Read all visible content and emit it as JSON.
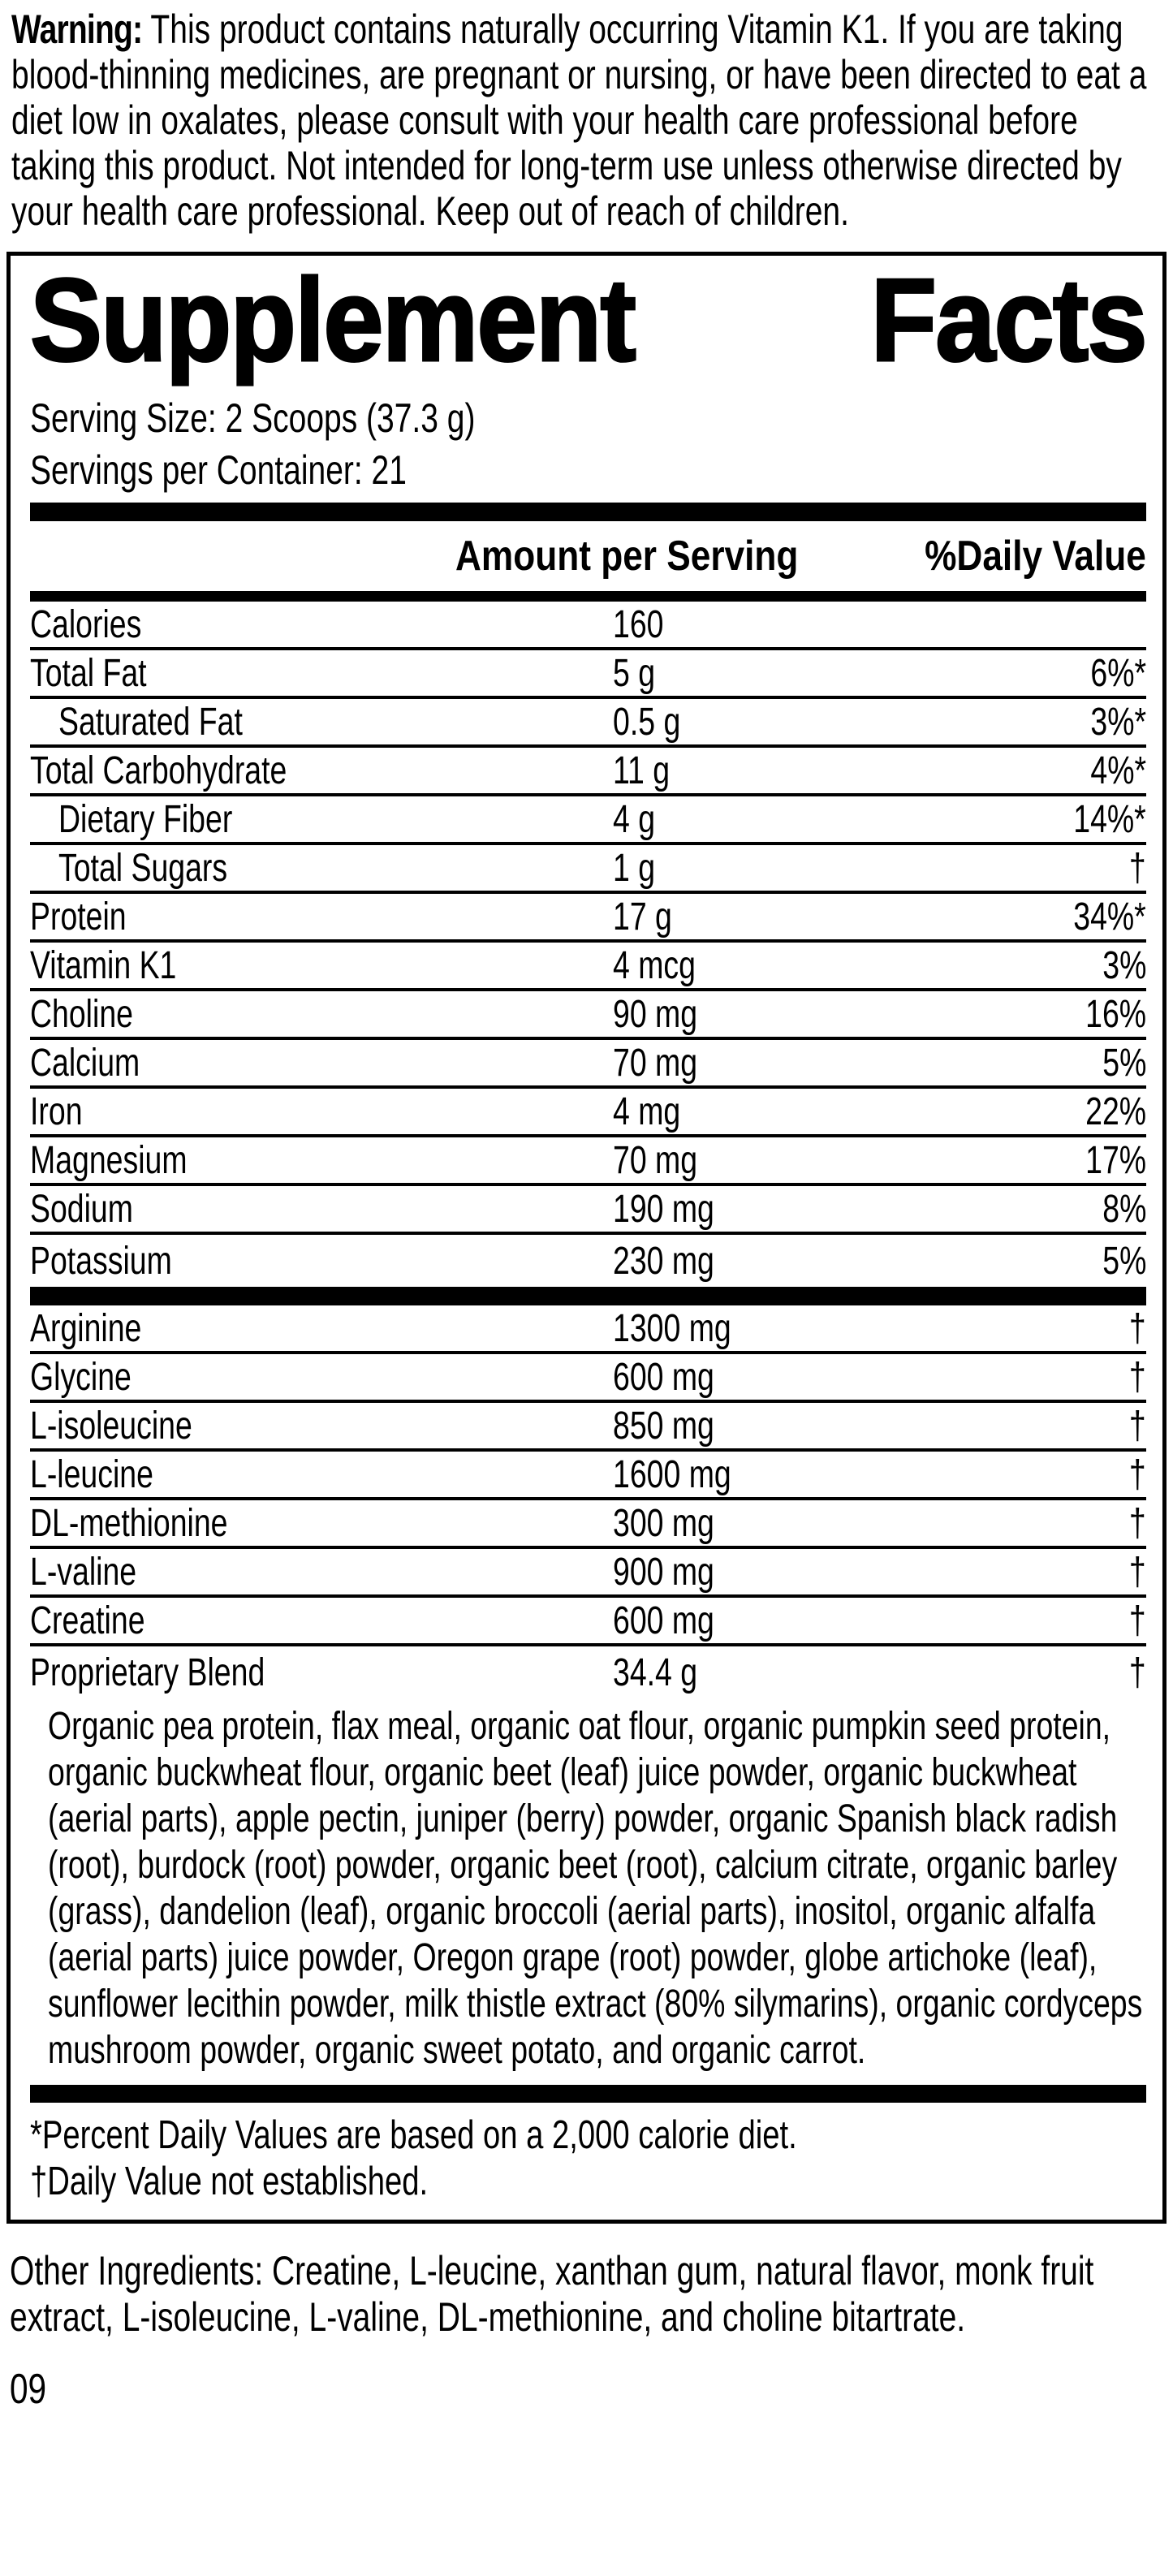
{
  "colors": {
    "text": "#000000",
    "background": "#ffffff"
  },
  "warning": {
    "label": "Warning:",
    "text": "This product contains naturally occurring Vitamin K1. If you are taking blood-thinning medicines, are pregnant or nursing, or have been directed to eat a diet low in oxalates, please consult with your health care professional before taking this product. Not intended for long-term use unless otherwise directed by your health care professional. Keep out of reach of children."
  },
  "supplement_facts": {
    "title_word_1": "Supplement",
    "title_word_2": "Facts",
    "serving_size": "Serving Size: 2 Scoops (37.3 g)",
    "servings_per_container": "Servings per Container: 21",
    "column_headers": {
      "amount": "Amount per Serving",
      "daily_value": "%Daily Value"
    },
    "nutrient_rows": [
      {
        "name": "Calories",
        "amount": "160",
        "dv": "",
        "indent": false
      },
      {
        "name": "Total Fat",
        "amount": "5 g",
        "dv": "6%*",
        "indent": false
      },
      {
        "name": "Saturated Fat",
        "amount": "0.5 g",
        "dv": "3%*",
        "indent": true
      },
      {
        "name": "Total Carbohydrate",
        "amount": "11 g",
        "dv": "4%*",
        "indent": false
      },
      {
        "name": "Dietary Fiber",
        "amount": "4 g",
        "dv": "14%*",
        "indent": true
      },
      {
        "name": "Total Sugars",
        "amount": "1 g",
        "dv": "†",
        "indent": true
      },
      {
        "name": "Protein",
        "amount": "17 g",
        "dv": "34%*",
        "indent": false
      },
      {
        "name": "Vitamin K1",
        "amount": "4 mcg",
        "dv": "3%",
        "indent": false
      },
      {
        "name": "Choline",
        "amount": "90 mg",
        "dv": "16%",
        "indent": false
      },
      {
        "name": "Calcium",
        "amount": "70 mg",
        "dv": "5%",
        "indent": false
      },
      {
        "name": "Iron",
        "amount": "4 mg",
        "dv": "22%",
        "indent": false
      },
      {
        "name": "Magnesium",
        "amount": "70 mg",
        "dv": "17%",
        "indent": false
      },
      {
        "name": "Sodium",
        "amount": "190 mg",
        "dv": "8%",
        "indent": false
      },
      {
        "name": "Potassium",
        "amount": "230 mg",
        "dv": "5%",
        "indent": false,
        "divider": false
      }
    ],
    "amino_rows": [
      {
        "name": "Arginine",
        "amount": "1300 mg",
        "dv": "†"
      },
      {
        "name": "Glycine",
        "amount": "600 mg",
        "dv": "†"
      },
      {
        "name": "L-isoleucine",
        "amount": "850 mg",
        "dv": "†"
      },
      {
        "name": "L-leucine",
        "amount": "1600 mg",
        "dv": "†"
      },
      {
        "name": "DL-methionine",
        "amount": "300 mg",
        "dv": "†"
      },
      {
        "name": "L-valine",
        "amount": "900 mg",
        "dv": "†"
      },
      {
        "name": "Creatine",
        "amount": "600 mg",
        "dv": "†"
      },
      {
        "name": "Proprietary Blend",
        "amount": "34.4 g",
        "dv": "†",
        "divider": false
      }
    ],
    "blend_description": "Organic pea protein, flax meal, organic oat flour, organic pumpkin seed protein, organic buckwheat flour, organic beet (leaf) juice powder, organic buckwheat (aerial parts), apple pectin, juniper (berry) powder, organic Spanish black radish (root), burdock (root) powder, organic beet (root), calcium citrate, organic barley (grass), dandelion (leaf), organic broccoli (aerial parts), inositol, organic alfalfa (aerial parts) juice powder, Oregon grape (root) powder, globe artichoke (leaf), sunflower lecithin powder, milk thistle extract (80% silymarins), organic cordyceps mushroom powder, organic sweet potato, and organic carrot.",
    "footnote_dv": "*Percent Daily Values are based on a 2,000 calorie diet.",
    "footnote_dagger": "†Daily Value not established."
  },
  "other_ingredients": "Other Ingredients: Creatine, L-leucine, xanthan gum, natural flavor, monk fruit extract, L-isoleucine, L-valine, DL-methionine, and choline bitartrate.",
  "page_number": "09"
}
